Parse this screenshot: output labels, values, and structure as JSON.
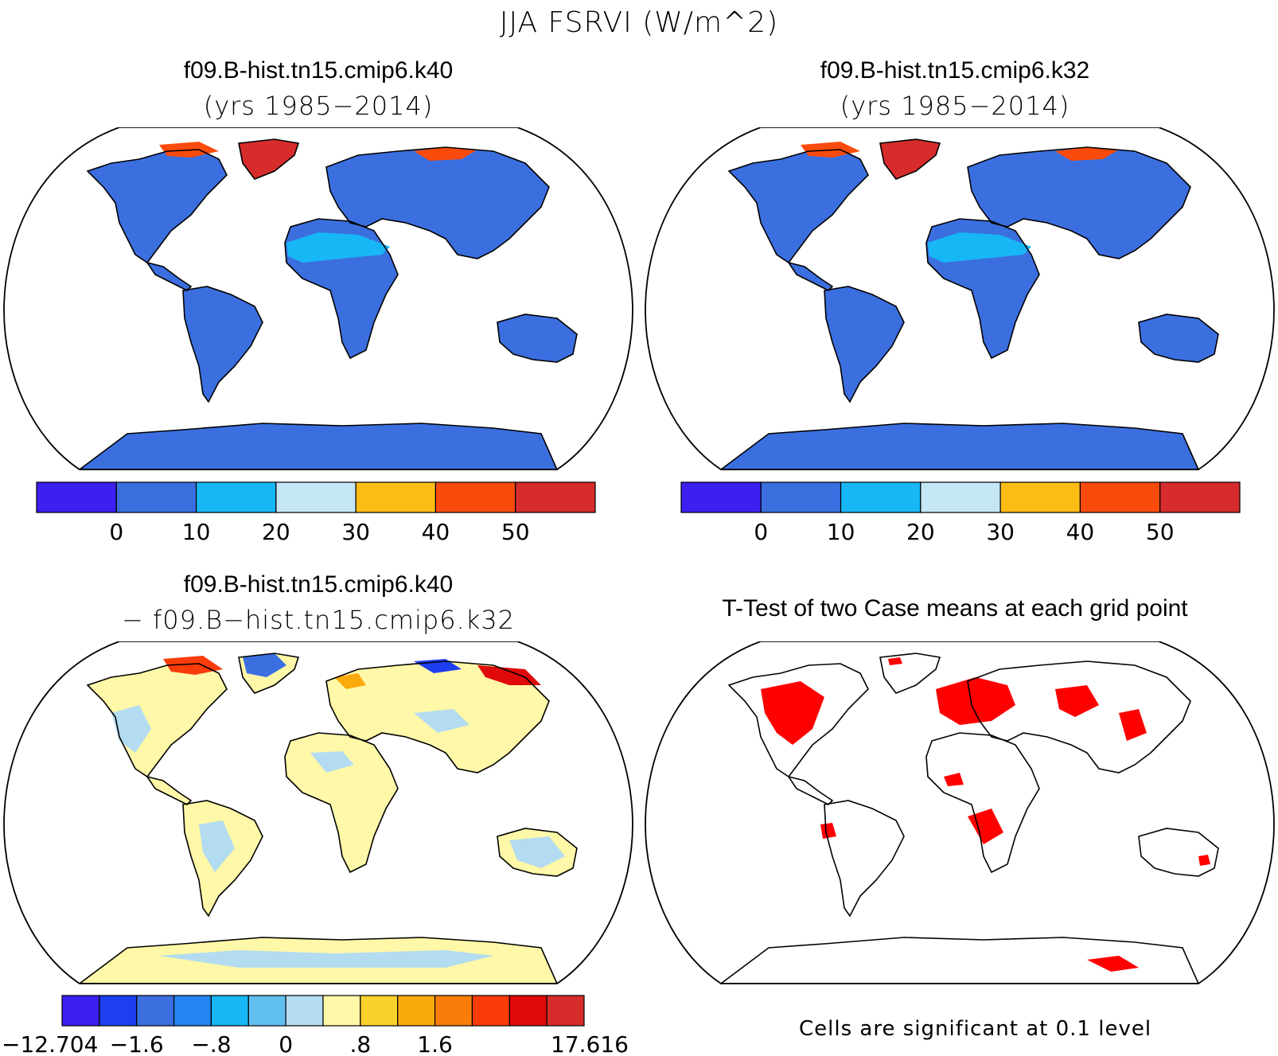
{
  "figure_title": "JJA FSRVI (W/m^2)",
  "panels": [
    {
      "title": "f09.B-hist.tn15.cmip6.k40",
      "subtitle": "(yrs 1985−2014)"
    },
    {
      "title": "f09.B-hist.tn15.cmip6.k32",
      "subtitle": "(yrs 1985−2014)"
    },
    {
      "title": "f09.B-hist.tn15.cmip6.k40",
      "subtitle": "− f09.B−hist.tn15.cmip6.k32"
    },
    {
      "title": "T-Test of two Case means at each grid point",
      "subtitle": ""
    }
  ],
  "colorbar_abs": {
    "colors": [
      "#3b20f0",
      "#3b6fe0",
      "#17b7f5",
      "#c5e6f5",
      "#fbbc16",
      "#fa4b0c",
      "#d62c2c"
    ],
    "labels": [
      "0",
      "10",
      "20",
      "30",
      "40",
      "50"
    ]
  },
  "colorbar_diff": {
    "colors": [
      "#3b20f0",
      "#1d3ff0",
      "#3b6fe0",
      "#2385f0",
      "#17b7f5",
      "#61bff0",
      "#b4dcf0",
      "#fff8a8",
      "#fad22e",
      "#fbaa0e",
      "#fa7d0a",
      "#fa3c0a",
      "#e00a0a",
      "#d62c2c"
    ],
    "labels": [
      "−12.704",
      "−1.6",
      "−.8",
      "0",
      ".8",
      "1.6",
      "17.616"
    ]
  },
  "significance_note": "Cells are significant at 0.1 level",
  "map_colors": {
    "land_abs": "#3b6fe0",
    "land_abs_sahara": "#17b7f5",
    "greenland": "#d62c2c",
    "land_diff": "#fff8a8",
    "diff_neg": "#b4dcf0",
    "ttest": "#ff0000",
    "coast": "#000000"
  }
}
